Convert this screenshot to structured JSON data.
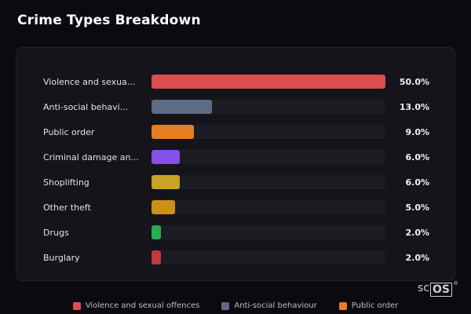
{
  "title": "Crime Types Breakdown",
  "logo": {
    "prefix": "sc",
    "boxed": "OS",
    "registered": "®"
  },
  "chart_data": {
    "type": "bar",
    "orientation": "horizontal",
    "title": "Crime Types Breakdown",
    "max_value": 50,
    "grid": false,
    "legend_position": "bottom",
    "categories": [
      "Violence and sexual offences",
      "Anti-social behaviour",
      "Public order",
      "Criminal damage and arson",
      "Shoplifting",
      "Other theft",
      "Drugs",
      "Burglary"
    ],
    "labels_displayed": [
      "Violence and sexua...",
      "Anti-social behavi...",
      "Public order",
      "Criminal damage an...",
      "Shoplifting",
      "Other theft",
      "Drugs",
      "Burglary"
    ],
    "values": [
      50.0,
      13.0,
      9.0,
      6.0,
      6.0,
      5.0,
      2.0,
      2.0
    ],
    "value_labels": [
      "50.0%",
      "13.0%",
      "9.0%",
      "6.0%",
      "6.0%",
      "5.0%",
      "2.0%",
      "2.0%"
    ],
    "colors": [
      "#d94f4f",
      "#5d6c82",
      "#e67e22",
      "#8450e8",
      "#c9a227",
      "#cc8f1a",
      "#27ae4f",
      "#bf3b3b"
    ],
    "track_color": "#1c1c23",
    "legend": [
      {
        "label": "Violence and sexual offences",
        "color": "#d94f4f"
      },
      {
        "label": "Anti-social behaviour",
        "color": "#5d6c82"
      },
      {
        "label": "Public order",
        "color": "#e67e22"
      }
    ]
  }
}
